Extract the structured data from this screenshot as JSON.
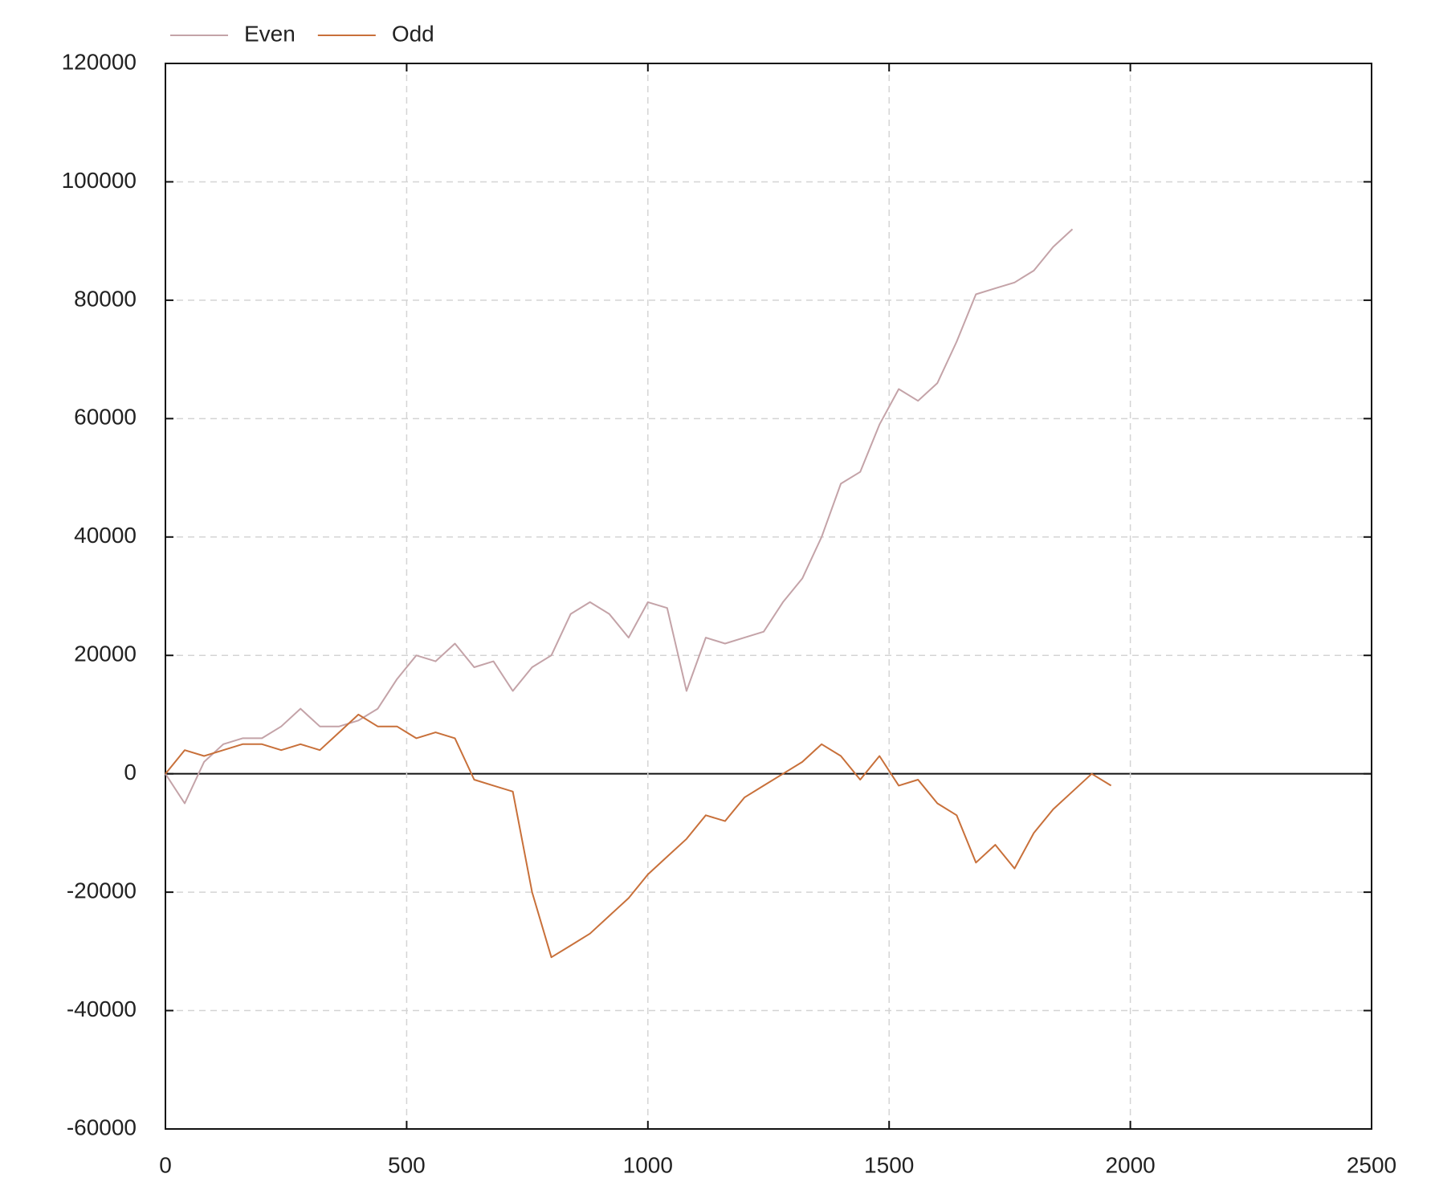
{
  "chart_data": {
    "type": "line",
    "x": [
      0,
      40,
      80,
      120,
      160,
      200,
      240,
      280,
      320,
      360,
      400,
      440,
      480,
      520,
      560,
      600,
      640,
      680,
      720,
      760,
      800,
      840,
      880,
      920,
      960,
      1000,
      1040,
      1080,
      1120,
      1160,
      1200,
      1240,
      1280,
      1320,
      1360,
      1400,
      1440,
      1480,
      1520,
      1560,
      1600,
      1640,
      1680,
      1720,
      1760,
      1800,
      1840,
      1880,
      1920,
      1960
    ],
    "series": [
      {
        "name": "Even",
        "color": "#c4a3a8",
        "values": [
          0,
          -5000,
          2000,
          5000,
          6000,
          6000,
          8000,
          11000,
          8000,
          8000,
          9000,
          11000,
          16000,
          20000,
          19000,
          22000,
          18000,
          19000,
          14000,
          18000,
          20000,
          27000,
          29000,
          27000,
          23000,
          29000,
          28000,
          14000,
          23000,
          22000,
          23000,
          24000,
          29000,
          33000,
          40000,
          49000,
          51000,
          59000,
          65000,
          63000,
          66000,
          73000,
          81000,
          82000,
          83000,
          85000,
          89000,
          92000,
          null,
          null
        ]
      },
      {
        "name": "Odd",
        "color": "#c8703a",
        "values": [
          0,
          4000,
          3000,
          4000,
          5000,
          5000,
          4000,
          5000,
          4000,
          7000,
          10000,
          8000,
          8000,
          6000,
          7000,
          6000,
          -1000,
          -2000,
          -3000,
          -20000,
          -31000,
          -29000,
          -27000,
          -24000,
          -21000,
          -17000,
          -14000,
          -11000,
          -7000,
          -8000,
          -4000,
          -2000,
          0,
          2000,
          5000,
          3000,
          -1000,
          3000,
          -2000,
          -1000,
          -5000,
          -7000,
          -15000,
          -12000,
          -16000,
          -10000,
          -6000,
          -3000,
          0,
          -2000
        ]
      }
    ],
    "xlim": [
      0,
      2500
    ],
    "xticks": [
      0,
      500,
      1000,
      1500,
      2000,
      2500
    ],
    "ylim": [
      -60000,
      120000
    ],
    "yticks": [
      -60000,
      -40000,
      -20000,
      0,
      20000,
      40000,
      60000,
      80000,
      100000,
      120000
    ],
    "grid": true,
    "legend": "top"
  }
}
